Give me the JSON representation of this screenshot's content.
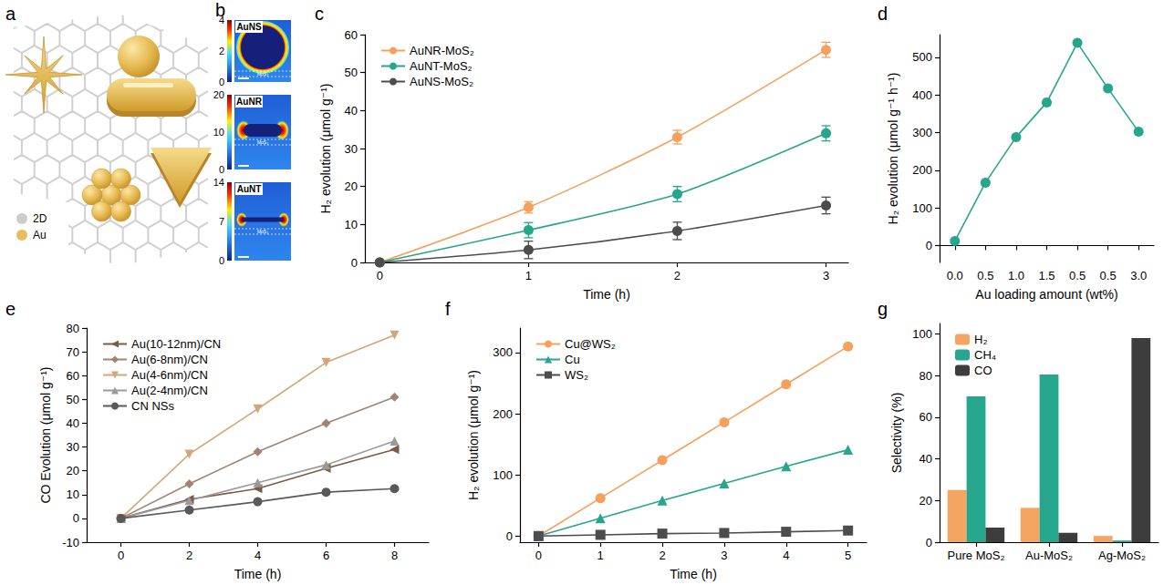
{
  "illustration": {
    "panel_label": "a",
    "legend": [
      {
        "label": "2D",
        "color": "#cccccc"
      },
      {
        "label": "Au",
        "color": "#e8bd5a"
      }
    ]
  },
  "field_maps": {
    "panel_label": "b",
    "substrate_label": "MoS₂",
    "maps": [
      {
        "label": "AuNS",
        "colorbar_ticks": [
          0,
          2,
          4
        ]
      },
      {
        "label": "AuNR",
        "colorbar_ticks": [
          0,
          10,
          20
        ]
      },
      {
        "label": "AuNT",
        "colorbar_ticks": [
          0,
          7,
          14
        ]
      }
    ]
  },
  "chart_data": [
    {
      "panel_label": "c",
      "type": "line",
      "x_label": "Time (h)",
      "y_label": "H₂ evolution (μmol g⁻¹)",
      "x": [
        0,
        1,
        2,
        3
      ],
      "xlim": [
        -0.1,
        3.15
      ],
      "xticks": [
        0,
        1,
        2,
        3
      ],
      "ylim": [
        0,
        60
      ],
      "yticks": [
        0,
        10,
        20,
        30,
        40,
        50,
        60
      ],
      "grid": false,
      "legend": "upper left",
      "series": [
        {
          "name": "AuNR-MoS₂",
          "color": "#f5a05c",
          "marker": "circle",
          "values": [
            0,
            14.5,
            33,
            56
          ],
          "errors": [
            0,
            1.5,
            1.8,
            2.0
          ]
        },
        {
          "name": "AuNT-MoS₂",
          "color": "#26a68c",
          "marker": "circle",
          "values": [
            0,
            8.5,
            18,
            34
          ],
          "errors": [
            0,
            2.0,
            2.0,
            2.0
          ]
        },
        {
          "name": "AuNS-MoS₂",
          "color": "#4d4d4d",
          "marker": "circle",
          "values": [
            0,
            3.3,
            8.3,
            15
          ],
          "errors": [
            0,
            2.3,
            2.3,
            2.2
          ]
        }
      ]
    },
    {
      "panel_label": "d",
      "type": "line",
      "x_label": "Au loading amount (wt%)",
      "y_label": "H₂ evolution (μmol g⁻¹ h⁻¹)",
      "categories": [
        "0.0",
        "0.5",
        "1.0",
        "1.5",
        "0.5",
        "0.5",
        "3.0"
      ],
      "values": [
        12,
        167,
        288,
        380,
        538,
        417,
        302
      ],
      "color": "#26a68c",
      "marker": "circle",
      "ylim": [
        -45,
        560
      ],
      "yticks": [
        0,
        100,
        200,
        300,
        400,
        500
      ],
      "grid": false
    },
    {
      "panel_label": "e",
      "type": "line",
      "x_label": "Time (h)",
      "y_label": "CO Evolution (μmol g⁻¹)",
      "x": [
        0,
        2,
        4,
        6,
        8
      ],
      "xlim": [
        -1,
        9
      ],
      "xticks": [
        0,
        2,
        4,
        6,
        8
      ],
      "ylim": [
        -10,
        80
      ],
      "yticks": [
        -10,
        0,
        10,
        20,
        30,
        40,
        50,
        60,
        70,
        80
      ],
      "grid": false,
      "legend": "upper left",
      "series": [
        {
          "name": "Au(10-12nm)/CN",
          "color": "#7b5a48",
          "marker": "triangle-left",
          "values": [
            0,
            8,
            12.5,
            21,
            29
          ]
        },
        {
          "name": "Au(6-8nm)/CN",
          "color": "#a08472",
          "marker": "diamond",
          "values": [
            0,
            14.5,
            28,
            40,
            51
          ]
        },
        {
          "name": "Au(4-6nm)/CN",
          "color": "#d2a67c",
          "marker": "triangle-down",
          "values": [
            0,
            27,
            46,
            65.5,
            77
          ]
        },
        {
          "name": "Au(2-4nm)/CN",
          "color": "#9a9a9a",
          "marker": "triangle",
          "values": [
            0,
            7.5,
            15,
            22.5,
            32.5
          ]
        },
        {
          "name": "CN NSs",
          "color": "#595959",
          "marker": "circle",
          "values": [
            0,
            3.5,
            7,
            11,
            12.5
          ]
        }
      ]
    },
    {
      "panel_label": "f",
      "type": "line",
      "x_label": "Time (h)",
      "y_label": "H₂ evolution (μmol g⁻¹)",
      "x": [
        0,
        1,
        2,
        3,
        4,
        5
      ],
      "xlim": [
        -0.3,
        5.3
      ],
      "xticks": [
        0,
        1,
        2,
        3,
        4,
        5
      ],
      "ylim": [
        -10,
        340
      ],
      "yticks": [
        0,
        100,
        200,
        300
      ],
      "grid": false,
      "legend": "upper left",
      "series": [
        {
          "name": "Cu@WS₂",
          "color": "#f5a05c",
          "marker": "circle",
          "values": [
            0,
            62,
            124,
            186,
            248,
            310
          ]
        },
        {
          "name": "Cu",
          "color": "#26a68c",
          "marker": "triangle",
          "values": [
            0,
            29,
            58,
            86,
            114,
            141
          ]
        },
        {
          "name": "WS₂",
          "color": "#4d4d4d",
          "marker": "square",
          "values": [
            0,
            2,
            4,
            5,
            7,
            9
          ]
        }
      ]
    },
    {
      "panel_label": "g",
      "type": "bar",
      "y_label": "Selectivity (%)",
      "categories": [
        "Pure MoS₂",
        "Au-MoS₂",
        "Ag-MoS₂"
      ],
      "ylim": [
        0,
        105
      ],
      "yticks": [
        0,
        20,
        40,
        60,
        80,
        100
      ],
      "grid": false,
      "legend": "upper left",
      "series": [
        {
          "name": "H₂",
          "color": "#f5a462",
          "values": [
            25,
            16.5,
            3
          ]
        },
        {
          "name": "CH₄",
          "color": "#26a68c",
          "values": [
            70,
            80.5,
            0.8
          ]
        },
        {
          "name": "CO",
          "color": "#3d3d3d",
          "values": [
            7,
            4.5,
            98
          ]
        }
      ]
    }
  ]
}
